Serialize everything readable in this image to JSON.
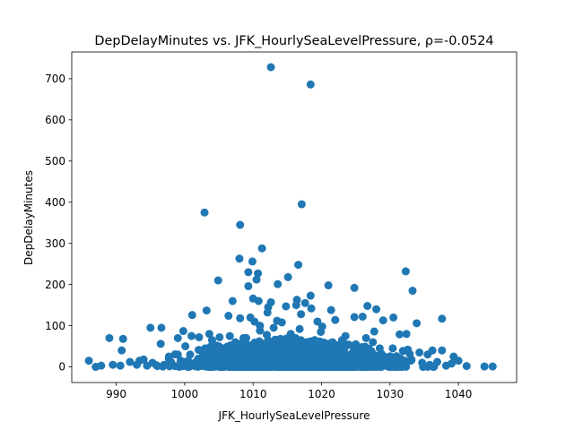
{
  "chart_data": {
    "type": "scatter",
    "title": "DepDelayMinutes vs. JFK_HourlySeaLevelPressure, ρ=-0.0524",
    "xlabel": "JFK_HourlySeaLevelPressure",
    "ylabel": "DepDelayMinutes",
    "xlim": [
      983.5,
      1048.5
    ],
    "ylim": [
      -38,
      765
    ],
    "xticks": [
      990,
      1000,
      1010,
      1020,
      1030,
      1040
    ],
    "yticks": [
      0,
      100,
      200,
      300,
      400,
      500,
      600,
      700
    ],
    "grid": false,
    "marker_color": "#1f77b4",
    "points": [
      [
        1012.6,
        728
      ],
      [
        1018.4,
        686
      ],
      [
        1017.1,
        395
      ],
      [
        1002.9,
        375
      ],
      [
        1008.1,
        345
      ],
      [
        1011.3,
        288
      ],
      [
        1008.0,
        263
      ],
      [
        1009.9,
        256
      ],
      [
        1016.6,
        248
      ],
      [
        1032.3,
        232
      ],
      [
        1009.3,
        230
      ],
      [
        1010.7,
        227
      ],
      [
        1010.5,
        212
      ],
      [
        1004.9,
        210
      ],
      [
        1015.1,
        218
      ],
      [
        1021.0,
        198
      ],
      [
        1013.6,
        201
      ],
      [
        1009.3,
        196
      ],
      [
        1024.8,
        192
      ],
      [
        1033.3,
        185
      ],
      [
        1018.4,
        173
      ],
      [
        1010.0,
        166
      ],
      [
        1016.4,
        163
      ],
      [
        1007.0,
        160
      ],
      [
        1012.6,
        157
      ],
      [
        1010.8,
        160
      ],
      [
        1017.6,
        155
      ],
      [
        1026.7,
        148
      ],
      [
        1028.0,
        140
      ],
      [
        1014.8,
        147
      ],
      [
        1016.3,
        150
      ],
      [
        1012.2,
        145
      ],
      [
        1018.5,
        142
      ],
      [
        1003.2,
        137
      ],
      [
        1021.4,
        138
      ],
      [
        1012.1,
        132
      ],
      [
        1017.0,
        128
      ],
      [
        1001.1,
        126
      ],
      [
        1006.4,
        124
      ],
      [
        1008.1,
        118
      ],
      [
        1009.6,
        120
      ],
      [
        1024.8,
        121
      ],
      [
        1030.5,
        120
      ],
      [
        1026.0,
        122
      ],
      [
        1037.6,
        117
      ],
      [
        1013.5,
        112
      ],
      [
        1019.4,
        110
      ],
      [
        1022.0,
        114
      ],
      [
        1029.0,
        113
      ],
      [
        1033.9,
        106
      ],
      [
        995.0,
        95
      ],
      [
        996.6,
        95
      ],
      [
        1020.1,
        98
      ],
      [
        1027.7,
        86
      ],
      [
        1016.8,
        92
      ],
      [
        1011.0,
        88
      ],
      [
        999.8,
        87
      ],
      [
        1003.6,
        80
      ],
      [
        1031.4,
        79
      ],
      [
        1032.4,
        80
      ],
      [
        989.0,
        70
      ],
      [
        991.0,
        68
      ],
      [
        999.0,
        70
      ],
      [
        1001.0,
        75
      ],
      [
        1005.1,
        72
      ],
      [
        1006.6,
        75
      ],
      [
        1002.1,
        72
      ],
      [
        1008.6,
        70
      ],
      [
        1014.0,
        68
      ],
      [
        1019.0,
        65
      ],
      [
        1023.0,
        65
      ],
      [
        1027.5,
        60
      ],
      [
        1035.5,
        30
      ],
      [
        996.5,
        56
      ],
      [
        1000.1,
        50
      ],
      [
        1003.0,
        45
      ],
      [
        1006.0,
        40
      ],
      [
        1013.2,
        55
      ],
      [
        1022.3,
        50
      ],
      [
        1028.5,
        45
      ],
      [
        1030.4,
        45
      ],
      [
        1032.6,
        42
      ],
      [
        1034.3,
        35
      ],
      [
        1036.2,
        40
      ],
      [
        1037.6,
        40
      ],
      [
        1039.3,
        25
      ],
      [
        990.8,
        40
      ],
      [
        993.4,
        15
      ],
      [
        997.7,
        25
      ],
      [
        999.0,
        30
      ],
      [
        1004.6,
        35
      ],
      [
        1009.3,
        30
      ],
      [
        1017.7,
        40
      ],
      [
        1025.2,
        35
      ],
      [
        986.0,
        15
      ],
      [
        987.0,
        0
      ],
      [
        987.8,
        3
      ],
      [
        989.5,
        5
      ],
      [
        990.6,
        3
      ],
      [
        992.0,
        12
      ],
      [
        993.0,
        5
      ],
      [
        994.0,
        18
      ],
      [
        994.5,
        3
      ],
      [
        995.3,
        10
      ],
      [
        996.0,
        2
      ],
      [
        997.0,
        5
      ],
      [
        998.0,
        12
      ],
      [
        998.6,
        2
      ],
      [
        999.5,
        6
      ],
      [
        1000.5,
        15
      ],
      [
        1001.2,
        8
      ],
      [
        1002.0,
        20
      ],
      [
        1003.5,
        12
      ],
      [
        1004.0,
        25
      ],
      [
        1005.5,
        18
      ],
      [
        1007.0,
        22
      ],
      [
        1007.6,
        38
      ],
      [
        1008.8,
        28
      ],
      [
        1010.3,
        42
      ],
      [
        1011.6,
        35
      ],
      [
        1012.9,
        30
      ],
      [
        1013.8,
        45
      ],
      [
        1014.6,
        26
      ],
      [
        1015.6,
        38
      ],
      [
        1016.0,
        20
      ],
      [
        1017.4,
        30
      ],
      [
        1018.9,
        26
      ],
      [
        1019.8,
        35
      ],
      [
        1020.6,
        20
      ],
      [
        1021.5,
        28
      ],
      [
        1022.8,
        18
      ],
      [
        1023.6,
        25
      ],
      [
        1024.2,
        10
      ],
      [
        1025.8,
        20
      ],
      [
        1026.6,
        12
      ],
      [
        1027.2,
        28
      ],
      [
        1028.0,
        15
      ],
      [
        1029.3,
        22
      ],
      [
        1030.0,
        8
      ],
      [
        1031.0,
        18
      ],
      [
        1031.7,
        5
      ],
      [
        1033.0,
        15
      ],
      [
        1034.7,
        10
      ],
      [
        1035.8,
        5
      ],
      [
        1036.9,
        12
      ],
      [
        1038.2,
        3
      ],
      [
        1039.0,
        8
      ],
      [
        1040.0,
        15
      ],
      [
        1041.2,
        2
      ],
      [
        1043.8,
        1
      ],
      [
        1045.0,
        1
      ],
      [
        1008.4,
        55
      ],
      [
        1010.9,
        62
      ],
      [
        1012.4,
        48
      ],
      [
        1015.0,
        58
      ],
      [
        1018.0,
        52
      ],
      [
        1020.3,
        45
      ],
      [
        1011.0,
        100
      ],
      [
        1013.0,
        95
      ],
      [
        1015.5,
        80
      ],
      [
        1012.0,
        78
      ],
      [
        1009.0,
        70
      ],
      [
        1016.2,
        70
      ],
      [
        1021.6,
        60
      ],
      [
        1014.2,
        108
      ],
      [
        1010.2,
        110
      ],
      [
        1019.9,
        85
      ],
      [
        1023.5,
        75
      ],
      [
        1026.5,
        70
      ],
      [
        1004.0,
        65
      ],
      [
        1007.4,
        60
      ],
      [
        1005.0,
        50
      ],
      [
        1002.5,
        40
      ],
      [
        1000.8,
        30
      ],
      [
        1025.0,
        55
      ]
    ]
  }
}
